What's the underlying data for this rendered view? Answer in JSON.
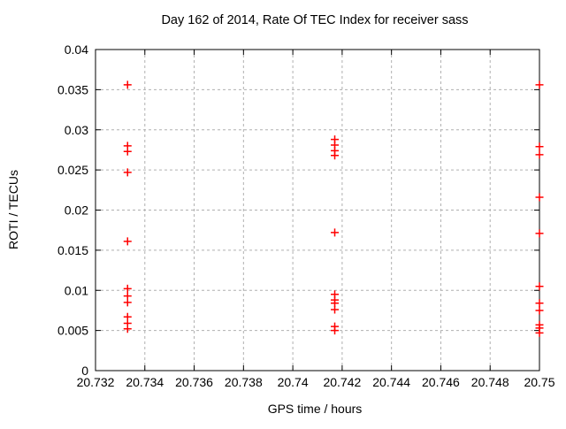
{
  "chart_data": {
    "type": "scatter",
    "title": "Day 162 of 2014, Rate Of TEC Index for receiver sass",
    "xlabel": "GPS time / hours",
    "ylabel": "ROTI / TECUs",
    "xlim": [
      20.732,
      20.75
    ],
    "ylim": [
      0,
      0.04
    ],
    "grid": true,
    "legend": "none",
    "marker": {
      "shape": "plus",
      "color": "#ff0000",
      "size": 9
    },
    "colors": {
      "background": "#ffffff",
      "border": "#000000",
      "grid": "#b0b0b0",
      "text": "#000000",
      "marker": "#ff0000"
    },
    "xticks": [
      {
        "value": 20.732,
        "label": "20.732"
      },
      {
        "value": 20.734,
        "label": "20.734"
      },
      {
        "value": 20.736,
        "label": "20.736"
      },
      {
        "value": 20.738,
        "label": "20.738"
      },
      {
        "value": 20.74,
        "label": "20.74"
      },
      {
        "value": 20.742,
        "label": "20.742"
      },
      {
        "value": 20.744,
        "label": "20.744"
      },
      {
        "value": 20.746,
        "label": "20.746"
      },
      {
        "value": 20.748,
        "label": "20.748"
      },
      {
        "value": 20.75,
        "label": "20.75"
      }
    ],
    "yticks": [
      {
        "value": 0,
        "label": "0"
      },
      {
        "value": 0.005,
        "label": "0.005"
      },
      {
        "value": 0.01,
        "label": "0.01"
      },
      {
        "value": 0.015,
        "label": "0.015"
      },
      {
        "value": 0.02,
        "label": "0.02"
      },
      {
        "value": 0.025,
        "label": "0.025"
      },
      {
        "value": 0.03,
        "label": "0.03"
      },
      {
        "value": 0.035,
        "label": "0.035"
      },
      {
        "value": 0.04,
        "label": "0.04"
      }
    ],
    "points": [
      {
        "x": 20.7333,
        "y": 0.0356
      },
      {
        "x": 20.7333,
        "y": 0.028
      },
      {
        "x": 20.7333,
        "y": 0.0273
      },
      {
        "x": 20.7333,
        "y": 0.0247
      },
      {
        "x": 20.7333,
        "y": 0.0161
      },
      {
        "x": 20.7333,
        "y": 0.0102
      },
      {
        "x": 20.7333,
        "y": 0.0093
      },
      {
        "x": 20.7333,
        "y": 0.0085
      },
      {
        "x": 20.7333,
        "y": 0.0067
      },
      {
        "x": 20.7333,
        "y": 0.0059
      },
      {
        "x": 20.7333,
        "y": 0.0052
      },
      {
        "x": 20.7417,
        "y": 0.0288
      },
      {
        "x": 20.7417,
        "y": 0.0281
      },
      {
        "x": 20.7417,
        "y": 0.0274
      },
      {
        "x": 20.7417,
        "y": 0.0268
      },
      {
        "x": 20.7417,
        "y": 0.0172
      },
      {
        "x": 20.7417,
        "y": 0.0095
      },
      {
        "x": 20.7417,
        "y": 0.0088
      },
      {
        "x": 20.7417,
        "y": 0.0084
      },
      {
        "x": 20.7417,
        "y": 0.0076
      },
      {
        "x": 20.7417,
        "y": 0.0055
      },
      {
        "x": 20.7417,
        "y": 0.005
      },
      {
        "x": 20.75,
        "y": 0.0356
      },
      {
        "x": 20.75,
        "y": 0.0279
      },
      {
        "x": 20.75,
        "y": 0.0269
      },
      {
        "x": 20.75,
        "y": 0.0216
      },
      {
        "x": 20.75,
        "y": 0.0171
      },
      {
        "x": 20.75,
        "y": 0.0105
      },
      {
        "x": 20.75,
        "y": 0.0084
      },
      {
        "x": 20.75,
        "y": 0.0075
      },
      {
        "x": 20.75,
        "y": 0.0057
      },
      {
        "x": 20.75,
        "y": 0.0053
      },
      {
        "x": 20.75,
        "y": 0.0047
      }
    ]
  }
}
